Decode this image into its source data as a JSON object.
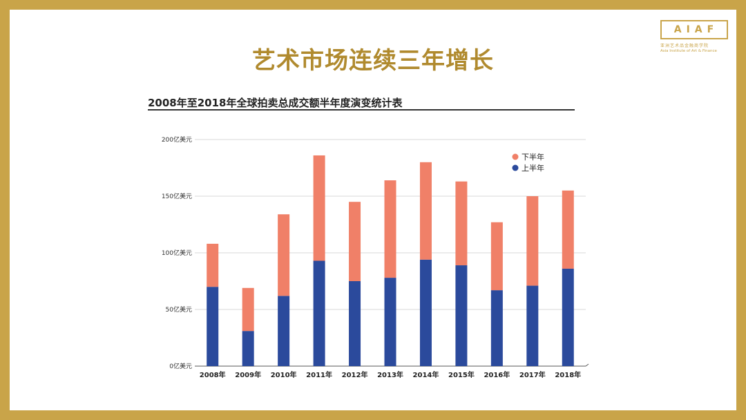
{
  "slide": {
    "title": "艺术市场连续三年增长"
  },
  "logo": {
    "mark": "AIAF",
    "name_cn": "亚洲艺术品金融商学院",
    "name_en": "Asia Institute of Art & Finance"
  },
  "colors": {
    "frame": "#C9A449",
    "title": "#B08A2E",
    "first_half": "#2B4A9C",
    "second_half": "#F08068"
  },
  "chart_data": {
    "type": "bar",
    "stacked": true,
    "title": "2008年至2018年全球拍卖总成交额半年度演变统计表",
    "categories": [
      "2008年",
      "2009年",
      "2010年",
      "2011年",
      "2012年",
      "2013年",
      "2014年",
      "2015年",
      "2016年",
      "2017年",
      "2018年"
    ],
    "series": [
      {
        "name": "上半年",
        "color": "#2B4A9C",
        "values": [
          70,
          31,
          62,
          93,
          75,
          78,
          94,
          89,
          67,
          71,
          86
        ]
      },
      {
        "name": "下半年",
        "color": "#F08068",
        "values": [
          38,
          38,
          72,
          93,
          70,
          86,
          86,
          74,
          60,
          79,
          69
        ]
      }
    ],
    "y_ticks": [
      {
        "value": 0,
        "label": "0亿美元"
      },
      {
        "value": 50,
        "label": "50亿美元"
      },
      {
        "value": 100,
        "label": "100亿美元"
      },
      {
        "value": 150,
        "label": "150亿美元"
      },
      {
        "value": 200,
        "label": "200亿美元"
      }
    ],
    "ylim": [
      0,
      200
    ],
    "grid": true,
    "legend": {
      "placement": "top-right",
      "order": [
        "下半年",
        "上半年"
      ]
    }
  }
}
